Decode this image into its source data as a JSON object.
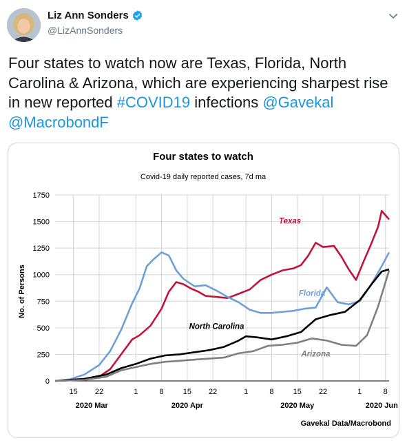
{
  "tweet": {
    "author_name": "Liz Ann Sonders",
    "handle": "@LizAnnSonders",
    "text_parts": [
      {
        "text": "Four states to watch now are Texas, Florida, North Carolina & Arizona, which are experiencing sharpest rise in new reported ",
        "link": false
      },
      {
        "text": "#COVID19",
        "link": true
      },
      {
        "text": " infections ",
        "link": false
      },
      {
        "text": "@Gavekal",
        "link": true
      },
      {
        "text": " ",
        "link": false
      },
      {
        "text": "@MacrobondF",
        "link": true
      }
    ],
    "icons": {
      "verified": "verified-badge-icon",
      "menu": "chevron-down-icon"
    },
    "colors": {
      "link": "#1b95e0",
      "verified": "#1da1f2"
    }
  },
  "chart_data": {
    "type": "line",
    "title": "Four states to watch",
    "subtitle": "Covid-19 daily reported cases, 7d ma",
    "ylabel": "No. of Persons",
    "ylim": [
      0,
      1750
    ],
    "yticks": [
      0,
      250,
      500,
      750,
      1000,
      1250,
      1500,
      1750
    ],
    "xlim": [
      "2020-03-10",
      "2020-06-09"
    ],
    "xticks": [
      {
        "date": "2020-03-15",
        "label": "15"
      },
      {
        "date": "2020-03-22",
        "label": "22"
      },
      {
        "date": "2020-04-01",
        "label": "1"
      },
      {
        "date": "2020-04-08",
        "label": "8"
      },
      {
        "date": "2020-04-15",
        "label": "15"
      },
      {
        "date": "2020-04-22",
        "label": "22"
      },
      {
        "date": "2020-05-01",
        "label": "1"
      },
      {
        "date": "2020-05-08",
        "label": "8"
      },
      {
        "date": "2020-05-15",
        "label": "15"
      },
      {
        "date": "2020-05-22",
        "label": "22"
      },
      {
        "date": "2020-06-01",
        "label": "1"
      },
      {
        "date": "2020-06-08",
        "label": "8"
      }
    ],
    "month_labels": [
      {
        "date": "2020-03-20",
        "label": "2020 Mar"
      },
      {
        "date": "2020-04-15",
        "label": "2020 Apr"
      },
      {
        "date": "2020-05-15",
        "label": "2020 May"
      },
      {
        "date": "2020-06-07",
        "label": "2020 Jun"
      }
    ],
    "source": "Gavekal Data/Macrobond",
    "grid": true,
    "series": [
      {
        "name": "Texas",
        "color": "#c0143c",
        "label_date": "2020-05-13",
        "label_value": 1480,
        "x": [
          "2020-03-10",
          "2020-03-14",
          "2020-03-18",
          "2020-03-22",
          "2020-03-25",
          "2020-03-28",
          "2020-03-31",
          "2020-04-02",
          "2020-04-05",
          "2020-04-08",
          "2020-04-10",
          "2020-04-12",
          "2020-04-14",
          "2020-04-16",
          "2020-04-18",
          "2020-04-20",
          "2020-04-23",
          "2020-04-26",
          "2020-04-29",
          "2020-05-02",
          "2020-05-05",
          "2020-05-08",
          "2020-05-11",
          "2020-05-14",
          "2020-05-16",
          "2020-05-18",
          "2020-05-20",
          "2020-05-22",
          "2020-05-25",
          "2020-05-27",
          "2020-05-29",
          "2020-05-31",
          "2020-06-02",
          "2020-06-04",
          "2020-06-06",
          "2020-06-07",
          "2020-06-09"
        ],
        "y": [
          0,
          5,
          15,
          40,
          110,
          250,
          390,
          430,
          520,
          680,
          840,
          930,
          910,
          870,
          840,
          800,
          790,
          780,
          820,
          860,
          950,
          1000,
          1040,
          1060,
          1090,
          1180,
          1300,
          1260,
          1270,
          1170,
          1050,
          950,
          1120,
          1280,
          1450,
          1600,
          1520
        ]
      },
      {
        "name": "Florida",
        "color": "#6f9fd8",
        "label_date": "2020-05-19",
        "label_value": 800,
        "x": [
          "2020-03-10",
          "2020-03-14",
          "2020-03-18",
          "2020-03-22",
          "2020-03-25",
          "2020-03-28",
          "2020-03-31",
          "2020-04-02",
          "2020-04-04",
          "2020-04-06",
          "2020-04-08",
          "2020-04-10",
          "2020-04-12",
          "2020-04-14",
          "2020-04-17",
          "2020-04-20",
          "2020-04-23",
          "2020-04-26",
          "2020-04-29",
          "2020-05-02",
          "2020-05-05",
          "2020-05-08",
          "2020-05-11",
          "2020-05-14",
          "2020-05-17",
          "2020-05-20",
          "2020-05-23",
          "2020-05-26",
          "2020-05-29",
          "2020-06-01",
          "2020-06-04",
          "2020-06-07",
          "2020-06-09"
        ],
        "y": [
          0,
          15,
          60,
          150,
          280,
          480,
          730,
          870,
          1080,
          1150,
          1210,
          1180,
          1040,
          960,
          890,
          900,
          850,
          790,
          740,
          670,
          640,
          640,
          650,
          660,
          680,
          690,
          880,
          740,
          720,
          750,
          900,
          1080,
          1210
        ]
      },
      {
        "name": "North Carolina",
        "color": "#000000",
        "label_date": "2020-04-23",
        "label_value": 490,
        "x": [
          "2020-03-10",
          "2020-03-18",
          "2020-03-24",
          "2020-03-28",
          "2020-04-01",
          "2020-04-05",
          "2020-04-09",
          "2020-04-13",
          "2020-04-17",
          "2020-04-21",
          "2020-04-25",
          "2020-04-29",
          "2020-05-01",
          "2020-05-04",
          "2020-05-08",
          "2020-05-12",
          "2020-05-16",
          "2020-05-20",
          "2020-05-24",
          "2020-05-28",
          "2020-06-01",
          "2020-06-04",
          "2020-06-07",
          "2020-06-09"
        ],
        "y": [
          0,
          20,
          60,
          120,
          160,
          210,
          240,
          250,
          270,
          290,
          320,
          380,
          420,
          410,
          390,
          420,
          460,
          580,
          620,
          650,
          760,
          900,
          1030,
          1050
        ]
      },
      {
        "name": "Arizona",
        "color": "#7f7f7f",
        "label_date": "2020-05-20",
        "label_value": 230,
        "x": [
          "2020-03-10",
          "2020-03-18",
          "2020-03-24",
          "2020-03-28",
          "2020-04-01",
          "2020-04-05",
          "2020-04-09",
          "2020-04-13",
          "2020-04-17",
          "2020-04-21",
          "2020-04-25",
          "2020-04-29",
          "2020-05-03",
          "2020-05-07",
          "2020-05-11",
          "2020-05-15",
          "2020-05-19",
          "2020-05-23",
          "2020-05-27",
          "2020-05-31",
          "2020-06-03",
          "2020-06-06",
          "2020-06-09"
        ],
        "y": [
          0,
          10,
          40,
          100,
          130,
          160,
          180,
          190,
          200,
          210,
          220,
          260,
          280,
          330,
          340,
          360,
          400,
          380,
          340,
          330,
          430,
          700,
          1040
        ]
      }
    ]
  }
}
